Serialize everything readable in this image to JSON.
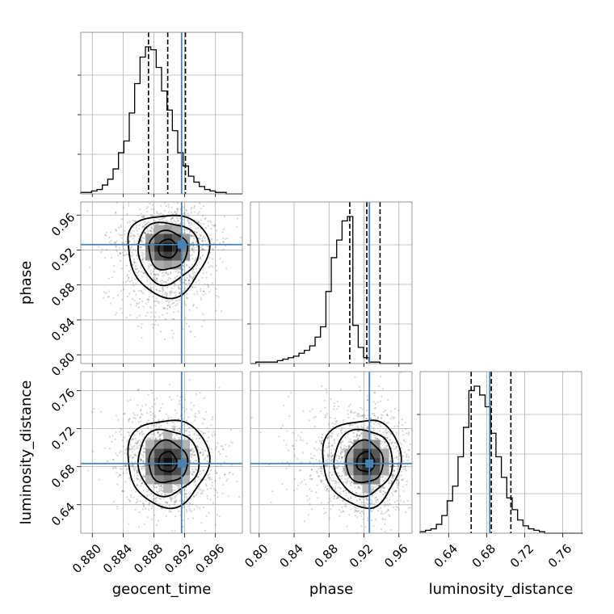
{
  "chart_data": {
    "type": "corner",
    "parameters": [
      "geocent_time",
      "phase",
      "luminosity_distance"
    ],
    "truths": {
      "geocent_time": 0.8916,
      "phase": 0.9262,
      "luminosity_distance": 0.6833
    },
    "quantiles": {
      "geocent_time": [
        0.8873,
        0.8898,
        0.8921
      ],
      "phase": [
        0.9037,
        0.9232,
        0.9384
      ],
      "luminosity_distance": [
        0.6637,
        0.6849,
        0.7055
      ]
    },
    "ranges": {
      "geocent_time": [
        0.8785,
        0.8995
      ],
      "phase": [
        0.79,
        0.975
      ],
      "luminosity_distance": [
        0.61,
        0.78
      ]
    },
    "ticks": {
      "geocent_time": [
        "0.880",
        "0.884",
        "0.888",
        "0.892",
        "0.896"
      ],
      "phase": [
        "0.80",
        "0.84",
        "0.88",
        "0.92",
        "0.96"
      ],
      "luminosity_distance": [
        "0.64",
        "0.68",
        "0.72",
        "0.76"
      ]
    },
    "histograms": {
      "geocent_time": {
        "bin_start": 0.8785,
        "bin_width": 0.0007,
        "counts": [
          1,
          1,
          2,
          3,
          6,
          10,
          17,
          28,
          36,
          55,
          75,
          93,
          100,
          98,
          86,
          70,
          57,
          43,
          28,
          19,
          12,
          8,
          5,
          3,
          2,
          1,
          1,
          0,
          0,
          0
        ]
      },
      "phase": {
        "bin_start": 0.79,
        "bin_width": 0.00617,
        "counts": [
          0,
          1,
          1,
          1,
          1,
          2,
          3,
          4,
          5,
          7,
          9,
          12,
          18,
          25,
          49,
          72,
          84,
          97,
          100,
          26,
          11,
          4,
          1,
          1,
          0,
          0,
          0,
          0,
          0,
          0
        ]
      },
      "luminosity_distance": {
        "bin_start": 0.61,
        "bin_width": 0.0057,
        "counts": [
          1,
          2,
          3,
          6,
          12,
          22,
          32,
          52,
          72,
          97,
          100,
          94,
          86,
          68,
          52,
          38,
          24,
          16,
          9,
          5,
          3,
          2,
          1,
          0,
          0,
          0,
          0,
          0,
          0,
          0
        ]
      }
    },
    "title": "",
    "grid": true
  }
}
